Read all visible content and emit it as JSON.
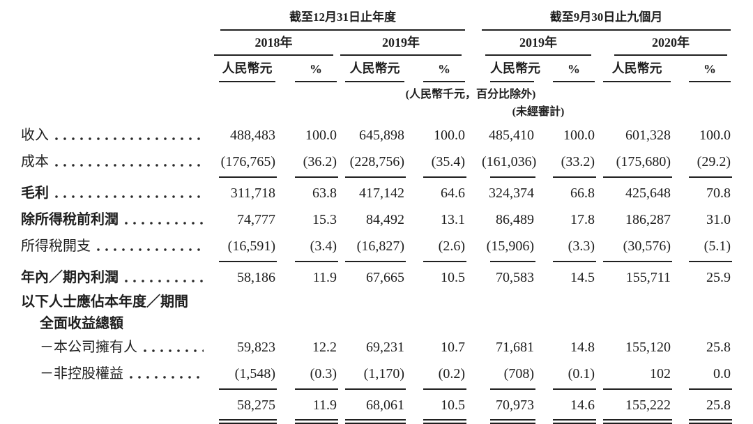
{
  "colors": {
    "background": "#ffffff",
    "text": "#1e1e1e",
    "rule_line": "#202020"
  },
  "table": {
    "col_groups": [
      {
        "title": "截至12月31日止年度",
        "years": [
          "2018年",
          "2019年"
        ]
      },
      {
        "title": "截至9月30日止九個月",
        "years": [
          "2019年",
          "2020年"
        ]
      }
    ],
    "unit_headers": {
      "amount": "人民幣元",
      "percent": "%"
    },
    "notes": [
      "(人民幣千元，百分比除外)",
      "(未經審計)"
    ],
    "rows": [
      {
        "label": "收入",
        "bold": false,
        "indent": 0,
        "leader": true,
        "rule": "none",
        "values": [
          "488,483",
          "100.0",
          "645,898",
          "100.0",
          "485,410",
          "100.0",
          "601,328",
          "100.0"
        ]
      },
      {
        "label": "成本",
        "bold": false,
        "indent": 0,
        "leader": true,
        "rule": "single",
        "values": [
          "(176,765)",
          "(36.2)",
          "(228,756)",
          "(35.4)",
          "(161,036)",
          "(33.2)",
          "(175,680)",
          "(29.2)"
        ]
      },
      {
        "label": "毛利",
        "bold": true,
        "indent": 0,
        "leader": true,
        "rule": "none",
        "values": [
          "311,718",
          "63.8",
          "417,142",
          "64.6",
          "324,374",
          "66.8",
          "425,648",
          "70.8"
        ]
      },
      {
        "label": "除所得稅前利潤",
        "bold": true,
        "indent": 0,
        "leader": true,
        "rule": "none",
        "values": [
          "74,777",
          "15.3",
          "84,492",
          "13.1",
          "86,489",
          "17.8",
          "186,287",
          "31.0"
        ]
      },
      {
        "label": "所得稅開支",
        "bold": false,
        "indent": 0,
        "leader": true,
        "rule": "single",
        "values": [
          "(16,591)",
          "(3.4)",
          "(16,827)",
          "(2.6)",
          "(15,906)",
          "(3.3)",
          "(30,576)",
          "(5.1)"
        ]
      },
      {
        "label": "年內／期內利潤",
        "bold": true,
        "indent": 0,
        "leader": true,
        "rule": "none",
        "values": [
          "58,186",
          "11.9",
          "67,665",
          "10.5",
          "70,583",
          "14.5",
          "155,711",
          "25.9"
        ]
      },
      {
        "label": "以下人士應佔本年度／期間",
        "bold": true,
        "indent": 0,
        "leader": false,
        "rule": "none",
        "values": []
      },
      {
        "label": "全面收益總額",
        "bold": true,
        "indent": 1,
        "leader": false,
        "rule": "none",
        "values": []
      },
      {
        "label": "－本公司擁有人",
        "bold": false,
        "indent": 1,
        "leader": true,
        "rule": "none",
        "values": [
          "59,823",
          "12.2",
          "69,231",
          "10.7",
          "71,681",
          "14.8",
          "155,120",
          "25.8"
        ]
      },
      {
        "label": "－非控股權益",
        "bold": false,
        "indent": 1,
        "leader": true,
        "rule": "single",
        "values": [
          "(1,548)",
          "(0.3)",
          "(1,170)",
          "(0.2)",
          "(708)",
          "(0.1)",
          "102",
          "0.0"
        ]
      },
      {
        "label": "",
        "bold": false,
        "indent": 0,
        "leader": false,
        "rule": "double",
        "values": [
          "58,275",
          "11.9",
          "68,061",
          "10.5",
          "70,973",
          "14.6",
          "155,222",
          "25.8"
        ]
      }
    ]
  }
}
